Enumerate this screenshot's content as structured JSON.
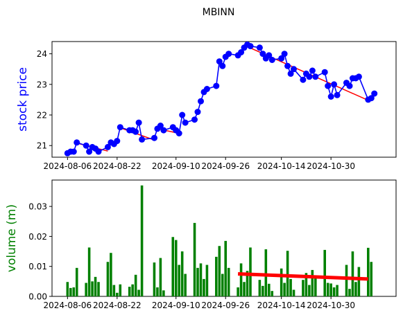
{
  "figure": {
    "title": "MBINN"
  },
  "chart_data": [
    {
      "type": "line",
      "ylabel": "stock price",
      "ylabel_color": "#0000ff",
      "line_color": "#0000ff",
      "trend_color": "#ff0000",
      "ylim": [
        20.62,
        24.4
      ],
      "yticks": [
        21,
        22,
        23,
        24
      ],
      "xlim": [
        "2024-08-01",
        "2024-11-20"
      ],
      "xticks": [
        "2024-08-06",
        "2024-08-22",
        "2024-09-10",
        "2024-09-26",
        "2024-10-14",
        "2024-10-30"
      ],
      "x": [
        "2024-08-06",
        "2024-08-07",
        "2024-08-08",
        "2024-08-09",
        "2024-08-12",
        "2024-08-13",
        "2024-08-14",
        "2024-08-15",
        "2024-08-16",
        "2024-08-19",
        "2024-08-20",
        "2024-08-21",
        "2024-08-22",
        "2024-08-23",
        "2024-08-26",
        "2024-08-27",
        "2024-08-28",
        "2024-08-29",
        "2024-08-30",
        "2024-09-03",
        "2024-09-04",
        "2024-09-05",
        "2024-09-06",
        "2024-09-09",
        "2024-09-10",
        "2024-09-11",
        "2024-09-12",
        "2024-09-13",
        "2024-09-16",
        "2024-09-17",
        "2024-09-18",
        "2024-09-19",
        "2024-09-20",
        "2024-09-23",
        "2024-09-24",
        "2024-09-25",
        "2024-09-26",
        "2024-09-27",
        "2024-09-30",
        "2024-10-01",
        "2024-10-02",
        "2024-10-03",
        "2024-10-04",
        "2024-10-07",
        "2024-10-08",
        "2024-10-09",
        "2024-10-10",
        "2024-10-11",
        "2024-10-14",
        "2024-10-15",
        "2024-10-16",
        "2024-10-17",
        "2024-10-18",
        "2024-10-21",
        "2024-10-22",
        "2024-10-23",
        "2024-10-24",
        "2024-10-25",
        "2024-10-28",
        "2024-10-29",
        "2024-10-30",
        "2024-10-31",
        "2024-11-01",
        "2024-11-04",
        "2024-11-05",
        "2024-11-06",
        "2024-11-07",
        "2024-11-08",
        "2024-11-11",
        "2024-11-12",
        "2024-11-13"
      ],
      "values": [
        20.75,
        20.8,
        20.8,
        21.1,
        21.0,
        20.8,
        20.95,
        20.9,
        20.8,
        20.95,
        21.1,
        21.05,
        21.15,
        21.6,
        21.5,
        21.5,
        21.45,
        21.75,
        21.2,
        21.25,
        21.55,
        21.65,
        21.5,
        21.6,
        21.5,
        21.4,
        22.0,
        21.75,
        21.85,
        22.1,
        22.45,
        22.75,
        22.85,
        22.95,
        23.75,
        23.6,
        23.9,
        24.0,
        23.95,
        24.05,
        24.2,
        24.3,
        24.25,
        24.2,
        24.0,
        23.85,
        23.95,
        23.8,
        23.85,
        24.0,
        23.6,
        23.35,
        23.5,
        23.15,
        23.35,
        23.25,
        23.45,
        23.25,
        23.4,
        22.95,
        22.6,
        23.0,
        22.65,
        23.05,
        22.95,
        23.2,
        23.2,
        23.25,
        22.5,
        22.55,
        22.7
      ],
      "trends": [
        {
          "from": [
            "2024-08-09",
            21.08
          ],
          "to": [
            "2024-08-19",
            20.82
          ]
        },
        {
          "from": [
            "2024-08-23",
            21.58
          ],
          "to": [
            "2024-09-03",
            21.18
          ]
        },
        {
          "from": [
            "2024-09-04",
            21.55
          ],
          "to": [
            "2024-09-10",
            21.42
          ]
        },
        {
          "from": [
            "2024-10-02",
            24.28
          ],
          "to": [
            "2024-11-11",
            22.48
          ]
        }
      ]
    },
    {
      "type": "bar",
      "ylabel": "volume (m)",
      "ylabel_color": "#008000",
      "bar_color": "#008000",
      "trend_color": "#ff0000",
      "ylim": [
        0,
        0.0388
      ],
      "yticks": [
        0.0,
        0.01,
        0.02,
        0.03
      ],
      "ytick_labels": [
        "0.00",
        "0.01",
        "0.02",
        "0.03"
      ],
      "xlim": [
        "2024-08-01",
        "2024-11-20"
      ],
      "xticks": [
        "2024-08-06",
        "2024-08-22",
        "2024-09-10",
        "2024-09-26",
        "2024-10-14",
        "2024-10-30"
      ],
      "values": [
        0.0048,
        0.0028,
        0.003,
        0.0095,
        0.0045,
        0.0163,
        0.005,
        0.0065,
        0.0048,
        0.0115,
        0.0145,
        0.0038,
        0.0012,
        0.004,
        0.0032,
        0.004,
        0.0072,
        0.0022,
        0.037,
        0.0113,
        0.003,
        0.0128,
        0.002,
        0.0198,
        0.0188,
        0.0105,
        0.015,
        0.0075,
        0.0245,
        0.0095,
        0.011,
        0.0058,
        0.0105,
        0.0132,
        0.0168,
        0.0075,
        0.0185,
        0.0095,
        0.003,
        0.011,
        0.0048,
        0.0085,
        0.0163,
        0.0055,
        0.0035,
        0.0157,
        0.0042,
        0.0018,
        0.0093,
        0.0045,
        0.0152,
        0.0058,
        0.0022,
        0.0055,
        0.0078,
        0.0038,
        0.0088,
        0.0065,
        0.0155,
        0.0045,
        0.0043,
        0.003,
        0.0038,
        0.0105,
        0.0025,
        0.015,
        0.0048,
        0.0098,
        0.0162,
        0.0115
      ],
      "trends": [
        {
          "from": [
            "2024-09-30",
            0.0075
          ],
          "to": [
            "2024-11-11",
            0.0058
          ]
        }
      ]
    }
  ]
}
